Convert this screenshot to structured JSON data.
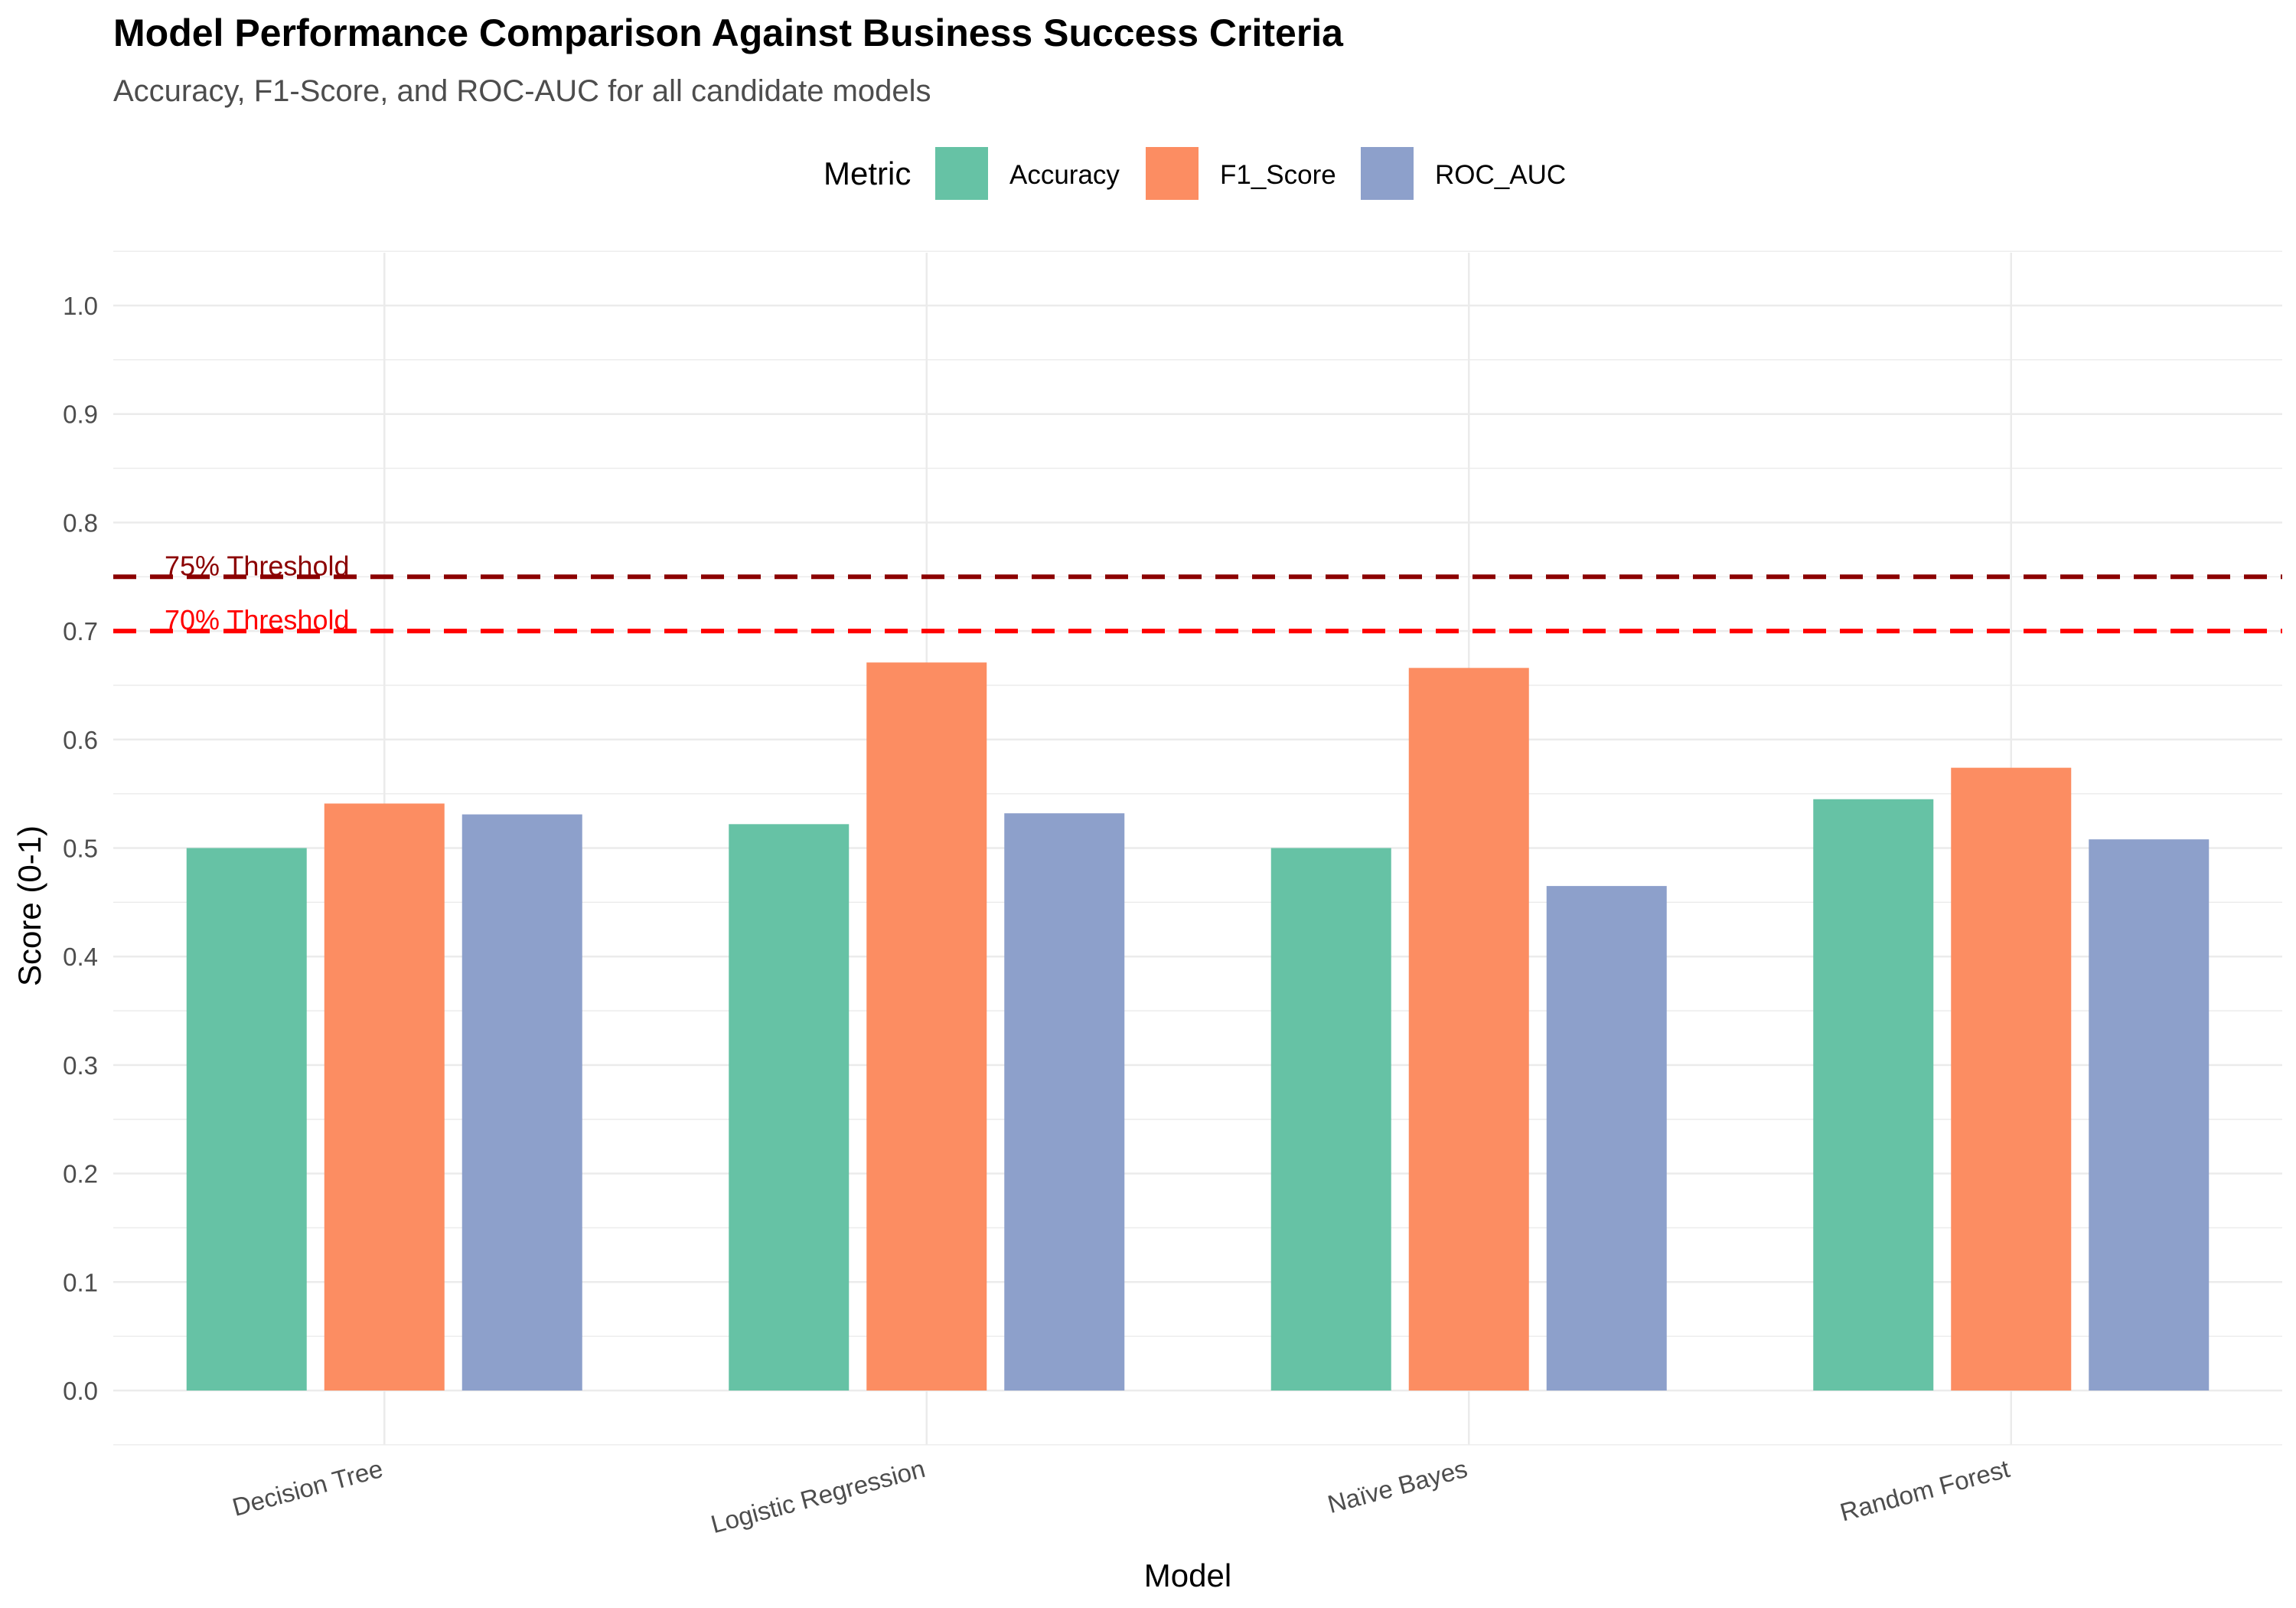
{
  "chart_data": {
    "type": "bar",
    "title": "Model Performance Comparison Against Business Success Criteria",
    "subtitle": "Accuracy, F1-Score, and ROC-AUC for all candidate models",
    "xlabel": "Model",
    "ylabel": "Score (0-1)",
    "ylim": [
      -0.05,
      1.05
    ],
    "yticks": [
      "0.0",
      "0.1",
      "0.2",
      "0.3",
      "0.4",
      "0.5",
      "0.6",
      "0.7",
      "0.8",
      "0.9",
      "1.0"
    ],
    "categories": [
      "Decision Tree",
      "Logistic Regression",
      "Naïve Bayes",
      "Random Forest"
    ],
    "legend": {
      "title": "Metric",
      "position": "top"
    },
    "grid": true,
    "series": [
      {
        "name": "Accuracy",
        "color": "#66c2a5",
        "values": [
          0.5,
          0.522,
          0.5,
          0.545
        ]
      },
      {
        "name": "F1_Score",
        "color": "#fc8d62",
        "values": [
          0.541,
          0.671,
          0.666,
          0.574
        ]
      },
      {
        "name": "ROC_AUC",
        "color": "#8da0cb",
        "values": [
          0.531,
          0.532,
          0.465,
          0.508
        ]
      }
    ],
    "reference_lines": [
      {
        "label": "75% Threshold",
        "value": 0.75,
        "color": "#8b0000",
        "style": "dashed"
      },
      {
        "label": "70% Threshold",
        "value": 0.7,
        "color": "#ff0000",
        "style": "dashed"
      }
    ]
  }
}
